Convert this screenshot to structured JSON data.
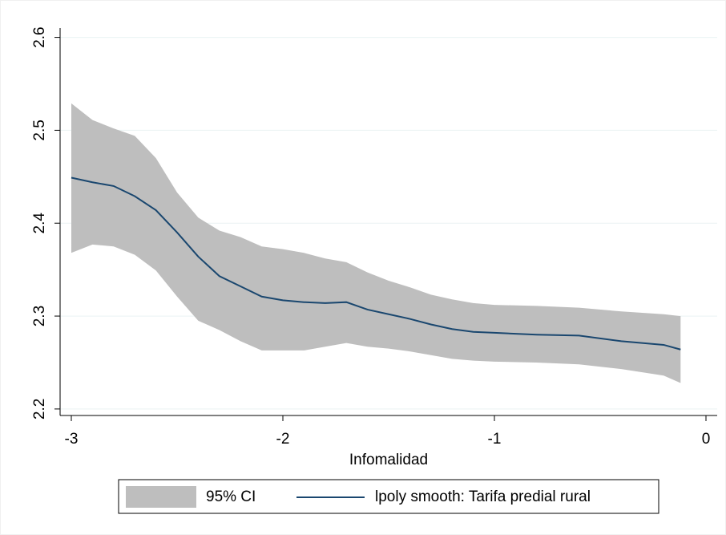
{
  "chart_data": {
    "type": "line",
    "x_label": "Infomalidad",
    "x": [
      -3,
      -2.9,
      -2.8,
      -2.7,
      -2.6,
      -2.5,
      -2.4,
      -2.3,
      -2.2,
      -2.1,
      -2.0,
      -1.9,
      -1.8,
      -1.7,
      -1.6,
      -1.5,
      -1.4,
      -1.3,
      -1.2,
      -1.1,
      -1.0,
      -0.8,
      -0.6,
      -0.4,
      -0.2,
      -0.12
    ],
    "series": [
      {
        "name": "95% CI",
        "color": "#bebebe",
        "upper": [
          2.529,
          2.511,
          2.502,
          2.494,
          2.47,
          2.433,
          2.406,
          2.392,
          2.385,
          2.375,
          2.372,
          2.368,
          2.362,
          2.358,
          2.347,
          2.338,
          2.331,
          2.323,
          2.318,
          2.314,
          2.312,
          2.311,
          2.309,
          2.305,
          2.302,
          2.3
        ],
        "lower": [
          2.368,
          2.377,
          2.375,
          2.366,
          2.349,
          2.321,
          2.295,
          2.285,
          2.273,
          2.263,
          2.263,
          2.263,
          2.267,
          2.271,
          2.267,
          2.265,
          2.262,
          2.258,
          2.254,
          2.252,
          2.251,
          2.25,
          2.248,
          2.243,
          2.236,
          2.228
        ]
      },
      {
        "name": "lpoly smooth: Tarifa predial rural",
        "color": "#1a476f",
        "values": [
          2.449,
          2.444,
          2.44,
          2.429,
          2.414,
          2.39,
          2.364,
          2.343,
          2.332,
          2.321,
          2.317,
          2.315,
          2.314,
          2.315,
          2.307,
          2.302,
          2.297,
          2.291,
          2.286,
          2.283,
          2.282,
          2.28,
          2.279,
          2.273,
          2.269,
          2.264
        ]
      }
    ],
    "xlim": [
      -3.053,
      0.053
    ],
    "xticks": [
      -3,
      -2,
      -1,
      0
    ],
    "ylim": [
      2.193,
      2.61
    ],
    "yticks": [
      2.2,
      2.3,
      2.4,
      2.5,
      2.6
    ],
    "grid": true
  }
}
